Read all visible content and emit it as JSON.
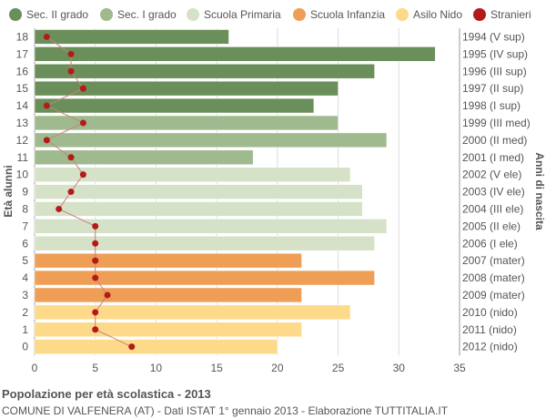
{
  "chart_data": {
    "type": "bar",
    "orientation": "horizontal",
    "title": "Popolazione per età scolastica - 2013",
    "subtitle": "COMUNE DI VALFENERA (AT) - Dati ISTAT 1° gennaio 2013 - Elaborazione TUTTITALIA.IT",
    "ylabel_left": "Età alunni",
    "ylabel_right": "Anni di nascita",
    "xlim": [
      0,
      35
    ],
    "xticks": [
      0,
      5,
      10,
      15,
      20,
      25,
      30,
      35
    ],
    "grid": true,
    "legend_position": "top",
    "legend": [
      {
        "name": "Sec. II grado",
        "color": "#6b8f5a"
      },
      {
        "name": "Sec. I grado",
        "color": "#9fba8e"
      },
      {
        "name": "Scuola Primaria",
        "color": "#d5e2c8"
      },
      {
        "name": "Scuola Infanzia",
        "color": "#ee9e55"
      },
      {
        "name": "Asilo Nido",
        "color": "#fdd98a"
      },
      {
        "name": "Stranieri",
        "color": "#b41a1a"
      }
    ],
    "rows": [
      {
        "age": "18",
        "birth": "1994 (V sup)",
        "value": 16,
        "stranieri": 1,
        "group": 0
      },
      {
        "age": "17",
        "birth": "1995 (IV sup)",
        "value": 33,
        "stranieri": 3,
        "group": 0
      },
      {
        "age": "16",
        "birth": "1996 (III sup)",
        "value": 28,
        "stranieri": 3,
        "group": 0
      },
      {
        "age": "15",
        "birth": "1997 (II sup)",
        "value": 25,
        "stranieri": 4,
        "group": 0
      },
      {
        "age": "14",
        "birth": "1998 (I sup)",
        "value": 23,
        "stranieri": 1,
        "group": 0
      },
      {
        "age": "13",
        "birth": "1999 (III med)",
        "value": 25,
        "stranieri": 4,
        "group": 1
      },
      {
        "age": "12",
        "birth": "2000 (II med)",
        "value": 29,
        "stranieri": 1,
        "group": 1
      },
      {
        "age": "11",
        "birth": "2001 (I med)",
        "value": 18,
        "stranieri": 3,
        "group": 1
      },
      {
        "age": "10",
        "birth": "2002 (V ele)",
        "value": 26,
        "stranieri": 4,
        "group": 2
      },
      {
        "age": "9",
        "birth": "2003 (IV ele)",
        "value": 27,
        "stranieri": 3,
        "group": 2
      },
      {
        "age": "8",
        "birth": "2004 (III ele)",
        "value": 27,
        "stranieri": 2,
        "group": 2
      },
      {
        "age": "7",
        "birth": "2005 (II ele)",
        "value": 29,
        "stranieri": 5,
        "group": 2
      },
      {
        "age": "6",
        "birth": "2006 (I ele)",
        "value": 28,
        "stranieri": 5,
        "group": 2
      },
      {
        "age": "5",
        "birth": "2007 (mater)",
        "value": 22,
        "stranieri": 5,
        "group": 3
      },
      {
        "age": "4",
        "birth": "2008 (mater)",
        "value": 28,
        "stranieri": 5,
        "group": 3
      },
      {
        "age": "3",
        "birth": "2009 (mater)",
        "value": 22,
        "stranieri": 6,
        "group": 3
      },
      {
        "age": "2",
        "birth": "2010 (nido)",
        "value": 26,
        "stranieri": 5,
        "group": 4
      },
      {
        "age": "1",
        "birth": "2011 (nido)",
        "value": 22,
        "stranieri": 5,
        "group": 4
      },
      {
        "age": "0",
        "birth": "2012 (nido)",
        "value": 20,
        "stranieri": 8,
        "group": 4
      }
    ]
  }
}
